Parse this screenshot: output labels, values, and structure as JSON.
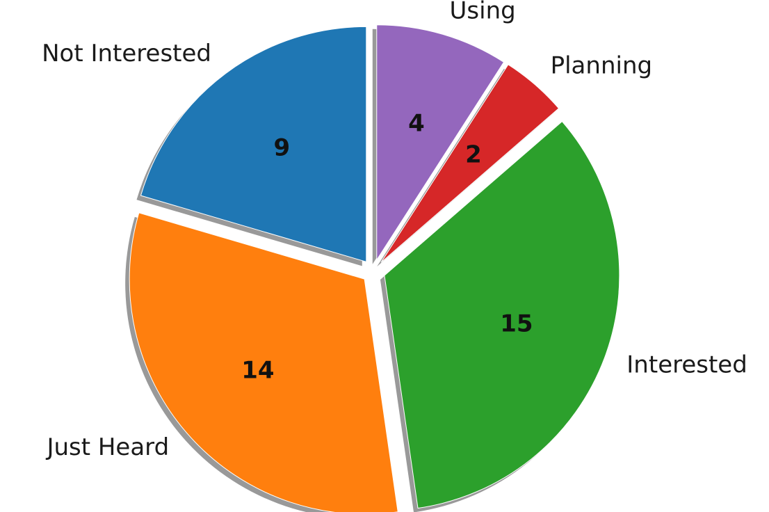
{
  "chart_data": {
    "type": "pie",
    "categories": [
      "Not Interested",
      "Just Heard",
      "Interested",
      "Planning",
      "Using"
    ],
    "values": [
      9,
      14,
      15,
      2,
      4
    ],
    "colors": [
      "#1f77b4",
      "#ff7f0e",
      "#2ca02c",
      "#d62728",
      "#9467bd"
    ]
  }
}
